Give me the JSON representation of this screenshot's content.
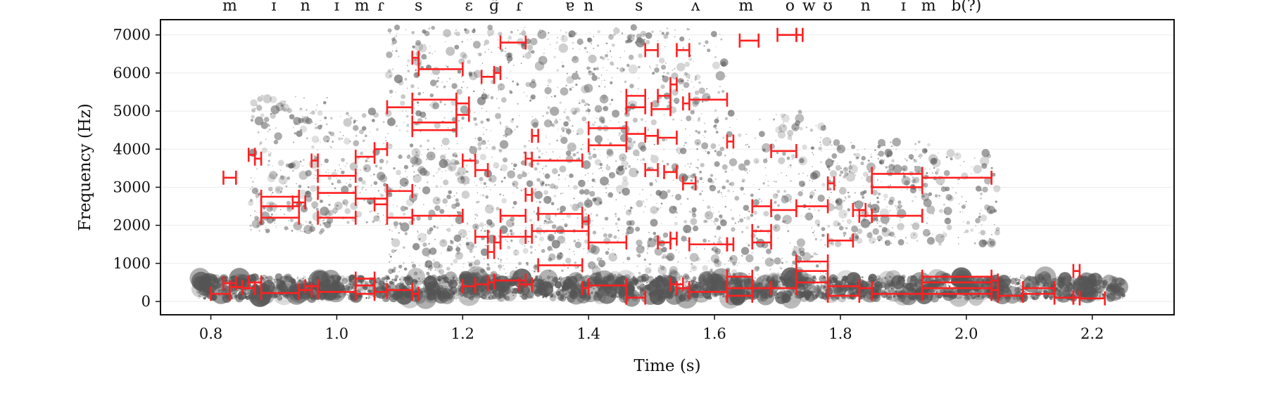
{
  "chart_data": {
    "type": "scatter",
    "xlabel": "Time (s)",
    "ylabel": "Frequency (Hz)",
    "xlim": [
      0.72,
      2.33
    ],
    "ylim": [
      -350,
      7400
    ],
    "xticks": [
      0.8,
      1.0,
      1.2,
      1.4,
      1.6,
      1.8,
      2.0,
      2.2
    ],
    "yticks": [
      0,
      1000,
      2000,
      3000,
      4000,
      5000,
      6000,
      7000
    ],
    "grid": "horizontal",
    "colors": {
      "points": "#555555",
      "intervals": "#ff2020",
      "grid": "#ebebeb"
    },
    "phone_labels": [
      {
        "t": 0.83,
        "label": "m"
      },
      {
        "t": 0.9,
        "label": "ɪ"
      },
      {
        "t": 0.95,
        "label": "n"
      },
      {
        "t": 1.0,
        "label": "ɪ"
      },
      {
        "t": 1.04,
        "label": "m"
      },
      {
        "t": 1.07,
        "label": "ɾ"
      },
      {
        "t": 1.13,
        "label": "s"
      },
      {
        "t": 1.21,
        "label": "ɛ"
      },
      {
        "t": 1.25,
        "label": "ɡ̃"
      },
      {
        "t": 1.29,
        "label": "ɾ"
      },
      {
        "t": 1.37,
        "label": "ɐ"
      },
      {
        "t": 1.4,
        "label": "n"
      },
      {
        "t": 1.48,
        "label": "s"
      },
      {
        "t": 1.57,
        "label": "ʌ"
      },
      {
        "t": 1.65,
        "label": "m"
      },
      {
        "t": 1.72,
        "label": "o"
      },
      {
        "t": 1.75,
        "label": "w"
      },
      {
        "t": 1.78,
        "label": "ʊ"
      },
      {
        "t": 1.84,
        "label": "n"
      },
      {
        "t": 1.9,
        "label": "ɪ"
      },
      {
        "t": 1.94,
        "label": "m"
      },
      {
        "t": 2.0,
        "label": "b(?)"
      }
    ],
    "point_series": {
      "name": "",
      "description_hint": "dense cloud of spectral peak estimates (t, frequency, weight)",
      "time_range": [
        0.78,
        2.3
      ],
      "bands": [
        {
          "t0": 0.78,
          "t1": 2.25,
          "f0": 80,
          "f1": 650,
          "density": 1.0
        },
        {
          "t0": 0.86,
          "t1": 0.99,
          "f0": 1800,
          "f1": 5400,
          "density": 0.6
        },
        {
          "t0": 0.99,
          "t1": 1.08,
          "f0": 2000,
          "f1": 5000,
          "density": 0.45
        },
        {
          "t0": 1.08,
          "t1": 1.42,
          "f0": 700,
          "f1": 7200,
          "density": 1.0
        },
        {
          "t0": 1.42,
          "t1": 1.62,
          "f0": 300,
          "f1": 7200,
          "density": 0.95
        },
        {
          "t0": 1.62,
          "t1": 1.78,
          "f0": 700,
          "f1": 5000,
          "density": 0.55
        },
        {
          "t0": 1.78,
          "t1": 1.95,
          "f0": 1500,
          "f1": 4200,
          "density": 0.55
        },
        {
          "t0": 1.95,
          "t1": 2.05,
          "f0": 1500,
          "f1": 3900,
          "density": 0.35
        }
      ]
    },
    "intervals": [
      [
        0.8,
        0.83,
        200
      ],
      [
        0.82,
        0.84,
        480
      ],
      [
        0.83,
        0.85,
        380
      ],
      [
        0.85,
        0.87,
        350
      ],
      [
        0.86,
        0.88,
        500
      ],
      [
        0.82,
        0.84,
        3250
      ],
      [
        0.86,
        0.87,
        3850
      ],
      [
        0.87,
        0.88,
        3750
      ],
      [
        0.88,
        0.94,
        2200
      ],
      [
        0.88,
        0.94,
        2500
      ],
      [
        0.88,
        0.94,
        2750
      ],
      [
        0.93,
        0.95,
        2600
      ],
      [
        0.88,
        0.94,
        220
      ],
      [
        0.94,
        0.96,
        300
      ],
      [
        0.95,
        0.97,
        400
      ],
      [
        0.96,
        0.97,
        3700
      ],
      [
        0.97,
        1.03,
        3300
      ],
      [
        0.97,
        1.03,
        2850
      ],
      [
        0.97,
        1.03,
        2200
      ],
      [
        0.97,
        1.03,
        250
      ],
      [
        1.03,
        1.06,
        600
      ],
      [
        1.03,
        1.06,
        420
      ],
      [
        1.03,
        1.06,
        200
      ],
      [
        1.03,
        1.06,
        3800
      ],
      [
        1.06,
        1.08,
        4000
      ],
      [
        1.03,
        1.08,
        2700
      ],
      [
        1.06,
        1.08,
        2550
      ],
      [
        1.08,
        1.12,
        2200
      ],
      [
        1.08,
        1.12,
        2900
      ],
      [
        1.08,
        1.12,
        5100
      ],
      [
        1.06,
        1.08,
        250
      ],
      [
        1.08,
        1.12,
        300
      ],
      [
        1.12,
        1.13,
        6400
      ],
      [
        1.13,
        1.2,
        6100
      ],
      [
        1.12,
        1.19,
        5300
      ],
      [
        1.12,
        1.19,
        4500
      ],
      [
        1.12,
        1.19,
        4700
      ],
      [
        1.12,
        1.2,
        2250
      ],
      [
        1.12,
        1.13,
        200
      ],
      [
        1.19,
        1.21,
        5200
      ],
      [
        1.19,
        1.21,
        4900
      ],
      [
        1.2,
        1.22,
        3700
      ],
      [
        1.22,
        1.24,
        3450
      ],
      [
        1.23,
        1.25,
        5900
      ],
      [
        1.25,
        1.26,
        6000
      ],
      [
        1.26,
        1.3,
        6800
      ],
      [
        1.2,
        1.22,
        400
      ],
      [
        1.22,
        1.24,
        450
      ],
      [
        1.24,
        1.25,
        500
      ],
      [
        1.25,
        1.3,
        550
      ],
      [
        1.29,
        1.31,
        450
      ],
      [
        1.22,
        1.24,
        1700
      ],
      [
        1.24,
        1.25,
        1300
      ],
      [
        1.25,
        1.26,
        1550
      ],
      [
        1.26,
        1.3,
        1700
      ],
      [
        1.26,
        1.3,
        2250
      ],
      [
        1.3,
        1.31,
        1700
      ],
      [
        1.3,
        1.31,
        2800
      ],
      [
        1.3,
        1.31,
        3750
      ],
      [
        1.31,
        1.32,
        4350
      ],
      [
        1.31,
        1.39,
        3700
      ],
      [
        1.31,
        1.4,
        1850
      ],
      [
        1.32,
        1.39,
        2300
      ],
      [
        1.32,
        1.39,
        950
      ],
      [
        1.39,
        1.4,
        350
      ],
      [
        1.39,
        1.4,
        2100
      ],
      [
        1.4,
        1.46,
        4100
      ],
      [
        1.4,
        1.46,
        4550
      ],
      [
        1.4,
        1.46,
        1550
      ],
      [
        1.4,
        1.46,
        420
      ],
      [
        1.46,
        1.49,
        5400
      ],
      [
        1.46,
        1.49,
        5100
      ],
      [
        1.46,
        1.49,
        4400
      ],
      [
        1.46,
        1.49,
        100
      ],
      [
        1.49,
        1.51,
        6600
      ],
      [
        1.5,
        1.53,
        5050
      ],
      [
        1.53,
        1.54,
        5700
      ],
      [
        1.51,
        1.53,
        5400
      ],
      [
        1.49,
        1.51,
        4350
      ],
      [
        1.51,
        1.54,
        4300
      ],
      [
        1.49,
        1.51,
        3450
      ],
      [
        1.52,
        1.54,
        3400
      ],
      [
        1.51,
        1.53,
        1550
      ],
      [
        1.53,
        1.54,
        1650
      ],
      [
        1.53,
        1.55,
        450
      ],
      [
        1.54,
        1.56,
        350
      ],
      [
        1.54,
        1.56,
        6600
      ],
      [
        1.55,
        1.56,
        5200
      ],
      [
        1.56,
        1.62,
        5300
      ],
      [
        1.55,
        1.57,
        3100
      ],
      [
        1.56,
        1.62,
        1500
      ],
      [
        1.56,
        1.62,
        250
      ],
      [
        1.62,
        1.63,
        1500
      ],
      [
        1.62,
        1.63,
        4200
      ],
      [
        1.64,
        1.67,
        6850
      ],
      [
        1.62,
        1.66,
        650
      ],
      [
        1.62,
        1.66,
        350
      ],
      [
        1.62,
        1.66,
        150
      ],
      [
        1.66,
        1.69,
        2500
      ],
      [
        1.66,
        1.69,
        1850
      ],
      [
        1.66,
        1.69,
        1550
      ],
      [
        1.66,
        1.69,
        350
      ],
      [
        1.7,
        1.73,
        7000
      ],
      [
        1.73,
        1.74,
        7000
      ],
      [
        1.69,
        1.73,
        3950
      ],
      [
        1.69,
        1.73,
        2400
      ],
      [
        1.69,
        1.73,
        350
      ],
      [
        1.73,
        1.78,
        2500
      ],
      [
        1.73,
        1.78,
        1050
      ],
      [
        1.73,
        1.78,
        800
      ],
      [
        1.73,
        1.78,
        500
      ],
      [
        1.78,
        1.79,
        3100
      ],
      [
        1.78,
        1.82,
        1600
      ],
      [
        1.78,
        1.83,
        400
      ],
      [
        1.78,
        1.83,
        150
      ],
      [
        1.82,
        1.84,
        2400
      ],
      [
        1.83,
        1.85,
        2250
      ],
      [
        1.83,
        1.85,
        350
      ],
      [
        1.85,
        1.93,
        3350
      ],
      [
        1.85,
        1.93,
        3000
      ],
      [
        1.85,
        1.93,
        2250
      ],
      [
        1.85,
        1.93,
        200
      ],
      [
        1.93,
        2.04,
        3250
      ],
      [
        1.93,
        2.04,
        650
      ],
      [
        1.93,
        2.04,
        500
      ],
      [
        1.93,
        2.04,
        350
      ],
      [
        1.93,
        2.04,
        200
      ],
      [
        2.04,
        2.05,
        550
      ],
      [
        2.04,
        2.05,
        300
      ],
      [
        2.05,
        2.09,
        150
      ],
      [
        2.09,
        2.14,
        350
      ],
      [
        2.09,
        2.14,
        200
      ],
      [
        2.14,
        2.17,
        100
      ],
      [
        2.17,
        2.18,
        800
      ],
      [
        2.17,
        2.18,
        100
      ],
      [
        2.18,
        2.22,
        80
      ]
    ]
  }
}
